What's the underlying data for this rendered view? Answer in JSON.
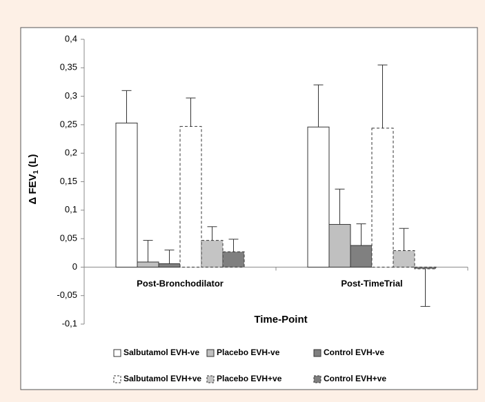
{
  "chart_data": {
    "type": "bar",
    "ylabel": [
      "Δ FEV",
      "1",
      " (L)"
    ],
    "xlabel": "Time-Point",
    "categories": [
      "Post-Bronchodilator",
      "Post-TimeTrial"
    ],
    "series": [
      {
        "name": "Salbutamol EVH-ve",
        "color": "#ffffff",
        "dashed": false,
        "values": [
          0.253,
          0.246
        ],
        "errors": [
          0.057,
          0.074
        ]
      },
      {
        "name": "Placebo EVH-ve",
        "color": "#c0c0c0",
        "dashed": false,
        "values": [
          0.009,
          0.075
        ],
        "errors": [
          0.038,
          0.062
        ]
      },
      {
        "name": "Control EVH-ve",
        "color": "#808080",
        "dashed": false,
        "values": [
          0.006,
          0.038
        ],
        "errors": [
          0.024,
          0.038
        ]
      },
      {
        "name": "Salbutamol EVH+ve",
        "color": "#ffffff",
        "dashed": true,
        "values": [
          0.247,
          0.244
        ],
        "errors": [
          0.05,
          0.111
        ]
      },
      {
        "name": "Placebo EVH+ve",
        "color": "#c4c4c4",
        "dashed": true,
        "values": [
          0.047,
          0.029
        ],
        "errors": [
          0.024,
          0.039
        ]
      },
      {
        "name": "Control EVH+ve",
        "color": "#7f7f7f",
        "dashed": true,
        "values": [
          0.027,
          -0.003
        ],
        "errors": [
          0.022,
          0.066
        ]
      }
    ],
    "ylim": [
      -0.1,
      0.4
    ],
    "yticks": [
      {
        "value": -0.1,
        "label": "-0,1"
      },
      {
        "value": -0.05,
        "label": "-0,05"
      },
      0,
      {
        "value": 0.05,
        "label": "0,05"
      },
      {
        "value": 0.1,
        "label": "0,1"
      },
      {
        "value": 0.15,
        "label": "0,15"
      },
      {
        "value": 0.2,
        "label": "0,2"
      },
      {
        "value": 0.25,
        "label": "0,25"
      },
      {
        "value": 0.3,
        "label": "0,3"
      },
      {
        "value": 0.35,
        "label": "0,35"
      },
      {
        "value": 0.4,
        "label": "0,4"
      }
    ],
    "grid": false
  }
}
